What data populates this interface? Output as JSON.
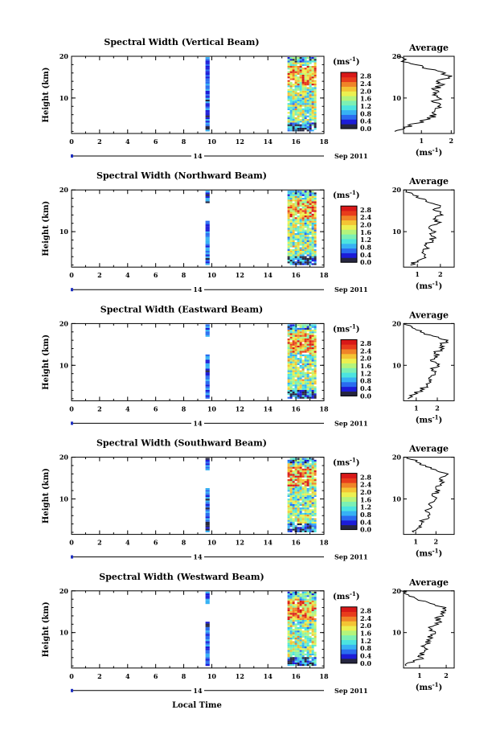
{
  "chart_data": {
    "type": "heatmap",
    "x_label": "Local Time",
    "date_label": "14",
    "month_label": "Sep 2011",
    "y_label": "Height (km)",
    "x_ticks": [
      "0",
      "2",
      "4",
      "6",
      "8",
      "10",
      "12",
      "14",
      "16",
      "18"
    ],
    "x_lim": [
      0,
      18
    ],
    "y_ticks": [
      "20",
      "10"
    ],
    "y_lim": [
      1.5,
      20
    ],
    "colorbar": {
      "unit_label": "(ms",
      "unit_exp": "-1",
      "unit_close": ")",
      "ticks": [
        "2.8",
        "2.4",
        "2.0",
        "1.6",
        "1.2",
        "0.8",
        "0.4",
        "0.0"
      ],
      "range": [
        0,
        3.0
      ],
      "colors": [
        "#262640",
        "#1c1cd8",
        "#2a6cf0",
        "#37b2f4",
        "#4ce4e0",
        "#7cf0b4",
        "#b4f47c",
        "#ecf050",
        "#f4c434",
        "#f08428",
        "#e83c1c",
        "#d81818"
      ]
    },
    "average_title": "Average",
    "average_x_label": "(ms",
    "average_x_exp": "-1",
    "average_x_close": ")",
    "data_blocks": [
      {
        "t_start": 9.55,
        "t_end": 9.85
      },
      {
        "t_start": 15.4,
        "t_end": 17.4
      }
    ],
    "panels": [
      {
        "title": "Spectral Width (Vertical Beam)",
        "avg_ticks": [
          "1",
          "2"
        ],
        "avg_xlim": [
          0.4,
          2.1
        ],
        "avg_profile": [
          [
            0.1,
            2
          ],
          [
            0.4,
            3
          ],
          [
            0.9,
            4
          ],
          [
            1.3,
            5
          ],
          [
            1.5,
            6
          ],
          [
            1.45,
            7
          ],
          [
            1.55,
            8
          ],
          [
            1.4,
            9
          ],
          [
            1.6,
            10
          ],
          [
            1.5,
            11
          ],
          [
            1.4,
            12
          ],
          [
            1.7,
            13
          ],
          [
            1.5,
            14
          ],
          [
            1.9,
            15
          ],
          [
            1.8,
            16
          ],
          [
            1.2,
            17
          ],
          [
            0.8,
            18
          ],
          [
            0.4,
            19
          ],
          [
            0.2,
            20
          ]
        ]
      },
      {
        "title": "Spectral Width (Northward Beam)",
        "avg_ticks": [
          "1",
          "2"
        ],
        "avg_xlim": [
          0.4,
          2.6
        ],
        "avg_profile": [
          [
            0.7,
            2
          ],
          [
            1.0,
            3
          ],
          [
            1.3,
            4
          ],
          [
            1.2,
            5
          ],
          [
            1.5,
            6
          ],
          [
            1.4,
            7
          ],
          [
            1.7,
            8
          ],
          [
            1.6,
            9
          ],
          [
            1.8,
            10
          ],
          [
            1.5,
            11
          ],
          [
            1.9,
            12
          ],
          [
            1.7,
            13
          ],
          [
            2.1,
            14
          ],
          [
            1.8,
            15
          ],
          [
            2.0,
            16
          ],
          [
            1.5,
            17
          ],
          [
            1.1,
            18
          ],
          [
            0.8,
            19
          ],
          [
            0.5,
            20
          ]
        ]
      },
      {
        "title": "Spectral Width (Eastward Beam)",
        "avg_ticks": [
          "1",
          "2"
        ],
        "avg_xlim": [
          0.4,
          2.8
        ],
        "avg_profile": [
          [
            0.6,
            2
          ],
          [
            0.9,
            3
          ],
          [
            1.2,
            4
          ],
          [
            1.5,
            5
          ],
          [
            1.7,
            6
          ],
          [
            1.6,
            7
          ],
          [
            1.9,
            8
          ],
          [
            1.8,
            9
          ],
          [
            2.0,
            10
          ],
          [
            1.7,
            11
          ],
          [
            2.0,
            12
          ],
          [
            1.9,
            13
          ],
          [
            2.3,
            14
          ],
          [
            2.2,
            15
          ],
          [
            2.5,
            16
          ],
          [
            1.8,
            17
          ],
          [
            1.2,
            18
          ],
          [
            0.8,
            19
          ],
          [
            0.4,
            20
          ]
        ]
      },
      {
        "title": "Spectral Width (Southward Beam)",
        "avg_ticks": [
          "1",
          "2"
        ],
        "avg_xlim": [
          0.4,
          2.9
        ],
        "avg_profile": [
          [
            0.9,
            2
          ],
          [
            1.1,
            3
          ],
          [
            1.3,
            4
          ],
          [
            1.4,
            5
          ],
          [
            1.6,
            6
          ],
          [
            1.5,
            7
          ],
          [
            1.8,
            8
          ],
          [
            1.7,
            9
          ],
          [
            2.0,
            10
          ],
          [
            1.8,
            11
          ],
          [
            2.2,
            12
          ],
          [
            2.0,
            13
          ],
          [
            2.4,
            14
          ],
          [
            2.2,
            15
          ],
          [
            2.6,
            16
          ],
          [
            2.0,
            17
          ],
          [
            1.5,
            18
          ],
          [
            1.0,
            19
          ],
          [
            0.6,
            20
          ]
        ]
      },
      {
        "title": "Spectral Width (Westward Beam)",
        "avg_ticks": [
          "1",
          "2"
        ],
        "avg_xlim": [
          0.4,
          2.3
        ],
        "avg_profile": [
          [
            0.5,
            2
          ],
          [
            0.8,
            3
          ],
          [
            1.1,
            4
          ],
          [
            1.0,
            5
          ],
          [
            1.3,
            6
          ],
          [
            1.2,
            7
          ],
          [
            1.4,
            8
          ],
          [
            1.3,
            9
          ],
          [
            1.6,
            10
          ],
          [
            1.4,
            11
          ],
          [
            1.7,
            12
          ],
          [
            1.6,
            13
          ],
          [
            1.9,
            14
          ],
          [
            1.8,
            15
          ],
          [
            2.0,
            16
          ],
          [
            1.4,
            17
          ],
          [
            0.9,
            18
          ],
          [
            0.6,
            19
          ],
          [
            0.3,
            20
          ]
        ]
      }
    ]
  }
}
